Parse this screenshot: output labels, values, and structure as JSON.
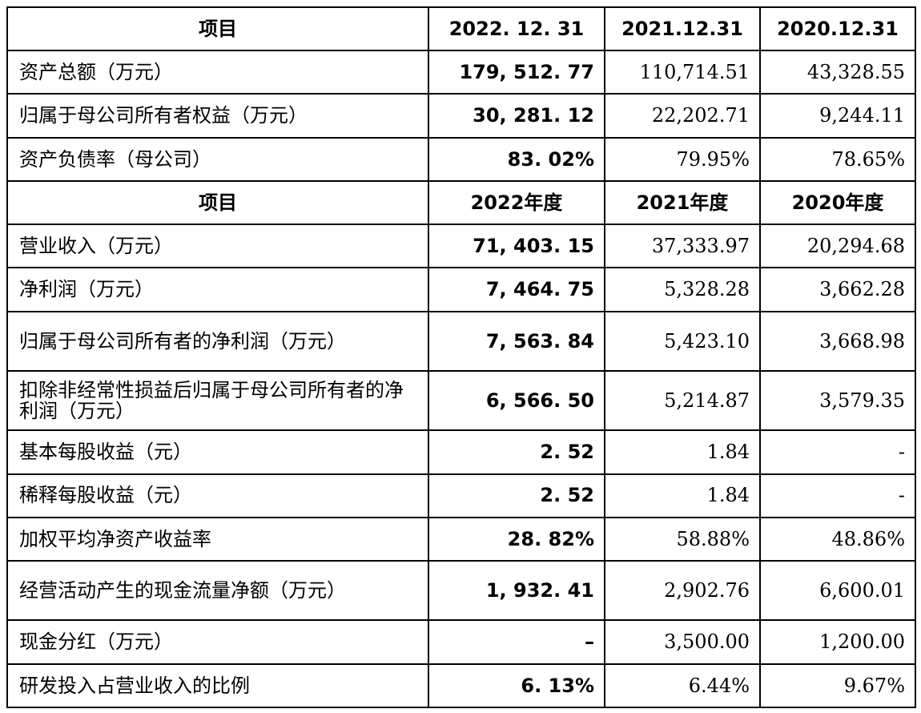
{
  "header_balance": {
    "item": "项目",
    "cols": [
      "2022. 12. 31",
      "2021.12.31",
      "2020.12.31"
    ]
  },
  "balance_rows": [
    {
      "label": "资产总额（万元）",
      "v2022": "179, 512. 77",
      "v2021": "110,714.51",
      "v2020": "43,328.55"
    },
    {
      "label": "归属于母公司所有者权益（万元）",
      "v2022": "30, 281. 12",
      "v2021": "22,202.71",
      "v2020": "9,244.11"
    },
    {
      "label": "资产负债率（母公司）",
      "v2022": "83. 02%",
      "v2021": "79.95%",
      "v2020": "78.65%"
    }
  ],
  "header_income": {
    "item": "项目",
    "cols": [
      "2022年度",
      "2021年度",
      "2020年度"
    ]
  },
  "income_rows": [
    {
      "label": "营业收入（万元）",
      "v2022": "71, 403. 15",
      "v2021": "37,333.97",
      "v2020": "20,294.68"
    },
    {
      "label": "净利润（万元）",
      "v2022": "7, 464. 75",
      "v2021": "5,328.28",
      "v2020": "3,662.28"
    },
    {
      "label": "归属于母公司所有者的净利润（万元）",
      "v2022": "7, 563. 84",
      "v2021": "5,423.10",
      "v2020": "3,668.98"
    },
    {
      "label": "扣除非经常性损益后归属于母公司所有者的净利润（万元）",
      "v2022": "6, 566. 50",
      "v2021": "5,214.87",
      "v2020": "3,579.35"
    },
    {
      "label": "基本每股收益（元）",
      "v2022": "2. 52",
      "v2021": "1.84",
      "v2020": "-"
    },
    {
      "label": "稀释每股收益（元）",
      "v2022": "2. 52",
      "v2021": "1.84",
      "v2020": "-"
    },
    {
      "label": "加权平均净资产收益率",
      "v2022": "28. 82%",
      "v2021": "58.88%",
      "v2020": "48.86%"
    },
    {
      "label": "经营活动产生的现金流量净额（万元）",
      "v2022": "1, 932. 41",
      "v2021": "2,902.76",
      "v2020": "6,600.01"
    },
    {
      "label": "现金分红（万元）",
      "v2022": "–",
      "v2021": "3,500.00",
      "v2020": "1,200.00"
    },
    {
      "label": "研发投入占营业收入的比例",
      "v2022": "6. 13%",
      "v2021": "6.44%",
      "v2020": "9.67%"
    }
  ]
}
